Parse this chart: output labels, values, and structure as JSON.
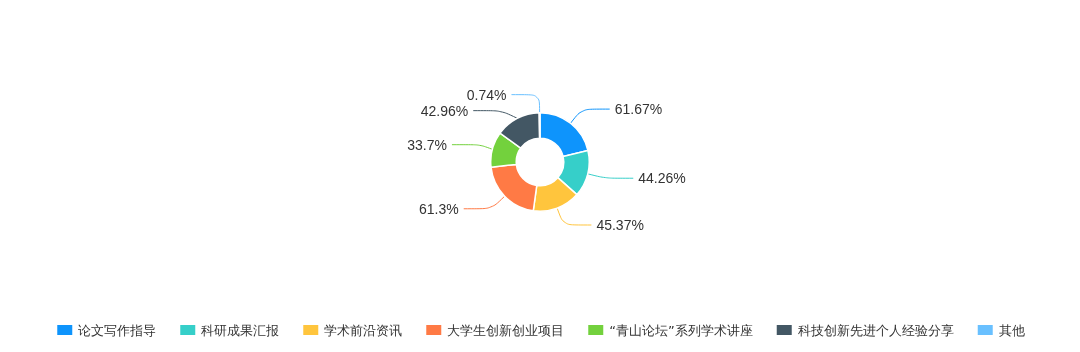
{
  "chart_data": {
    "type": "donut",
    "categories": [
      "论文写作指导",
      "科研成果汇报",
      "学术前沿资讯",
      "大学生创新创业项目",
      "“青山论坛”系列学术讲座",
      "科技创新先进个人经验分享",
      "其他"
    ],
    "values": [
      61.67,
      44.26,
      45.37,
      61.3,
      33.7,
      42.96,
      0.74
    ],
    "value_labels": [
      "61.67%",
      "44.26%",
      "45.37%",
      "61.3%",
      "33.7%",
      "42.96%",
      "0.74%"
    ],
    "colors": [
      "#0e94fc",
      "#36cfc9",
      "#ffc53d",
      "#ff7a45",
      "#73d13d",
      "#435764",
      "#69c0ff"
    ],
    "legend": "bottom"
  }
}
